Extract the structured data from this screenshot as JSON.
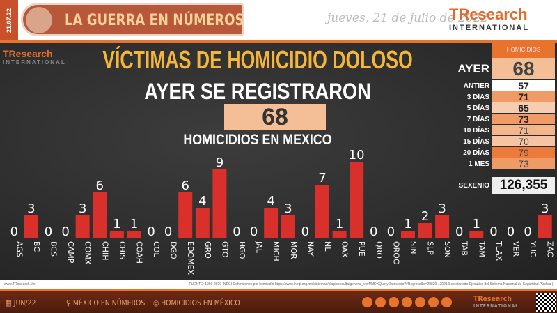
{
  "header": {
    "side_date": "21.07.22",
    "banner": "LA GUERRA EN NÚMEROS",
    "date": "jueves, 21 de julio de 2022",
    "logo_main": "TResearch",
    "logo_sub": "INTERNATIONAL"
  },
  "main": {
    "watermark": "TResearch",
    "watermark_sub": "INTERNATIONAL",
    "title": "VÍCTIMAS DE HOMICIDIO DOLOSO",
    "subtitle": "AYER SE REGISTRARON",
    "total": "68",
    "caption": "HOMICIDIOS EN MEXICO"
  },
  "table": {
    "header": "HOMICIDIOS",
    "rows": [
      {
        "label": "AYER",
        "value": "68",
        "color": "#f4bf97"
      },
      {
        "label": "ANTIER",
        "value": "57",
        "color": "#ffffff"
      },
      {
        "label": "3 DÍAS",
        "value": "71",
        "color": "#f09a66"
      },
      {
        "label": "5 DÍAS",
        "value": "65",
        "color": "#f6cdb0"
      },
      {
        "label": "7 DÍAS",
        "value": "73",
        "color": "#f09a66"
      },
      {
        "label": "10 DÍAS",
        "value": "71",
        "color": "#f4b58c"
      },
      {
        "label": "15 DÍAS",
        "value": "70",
        "color": "#f6c4a2"
      },
      {
        "label": "20 DÍAS",
        "value": "79",
        "color": "#ec7a3a"
      },
      {
        "label": "1 MES",
        "value": "73",
        "color": "#f09a66"
      }
    ],
    "sexenio_label": "SEXENIO",
    "sexenio_value": "126,355"
  },
  "chart_data": {
    "type": "bar",
    "color": "#d9302c",
    "categories": [
      "AGS",
      "BC",
      "BCS",
      "CAMP",
      "COMX",
      "CHIH",
      "CHIS",
      "COAH",
      "COL",
      "DGO",
      "EDOMEX",
      "GRO",
      "GTO",
      "HGO",
      "JAL",
      "MICH",
      "MOR",
      "NAY",
      "NL",
      "OAX",
      "PUE",
      "QRO",
      "QROO",
      "SIN",
      "SLP",
      "SON",
      "TAB",
      "TAM",
      "TLAX",
      "VER",
      "YUC",
      "ZAC"
    ],
    "values": [
      0,
      3,
      0,
      0,
      3,
      6,
      1,
      1,
      0,
      0,
      6,
      4,
      9,
      0,
      0,
      4,
      3,
      0,
      7,
      1,
      10,
      0,
      0,
      1,
      2,
      3,
      0,
      1,
      0,
      0,
      0,
      3
    ]
  },
  "source": {
    "website": "www.TResearch.Mx",
    "text": "FUENTE: 1990-2020 INEGI Defunciones por homicidio https://www.inegi.org.mx/sistemas/olap/consulta/general_ver4/MDXQueryDatos.asp?#Regreso&c=28820 . 2021 Secretariado Ejecutivo del Sistema Nacional de Seguridad Pública |"
  },
  "footer": {
    "items": [
      "JUN/22",
      "MÉXICO EN NÚMEROS",
      "HOMICIDIOS EN MÉXICO"
    ],
    "logo_main": "TResearch",
    "logo_sub": "INTERNATIONAL",
    "social_icons": [
      "globe-icon",
      "whatsapp-icon",
      "email-icon",
      "twitter-icon",
      "facebook-icon",
      "linkedin-icon",
      "youtube-icon"
    ]
  }
}
